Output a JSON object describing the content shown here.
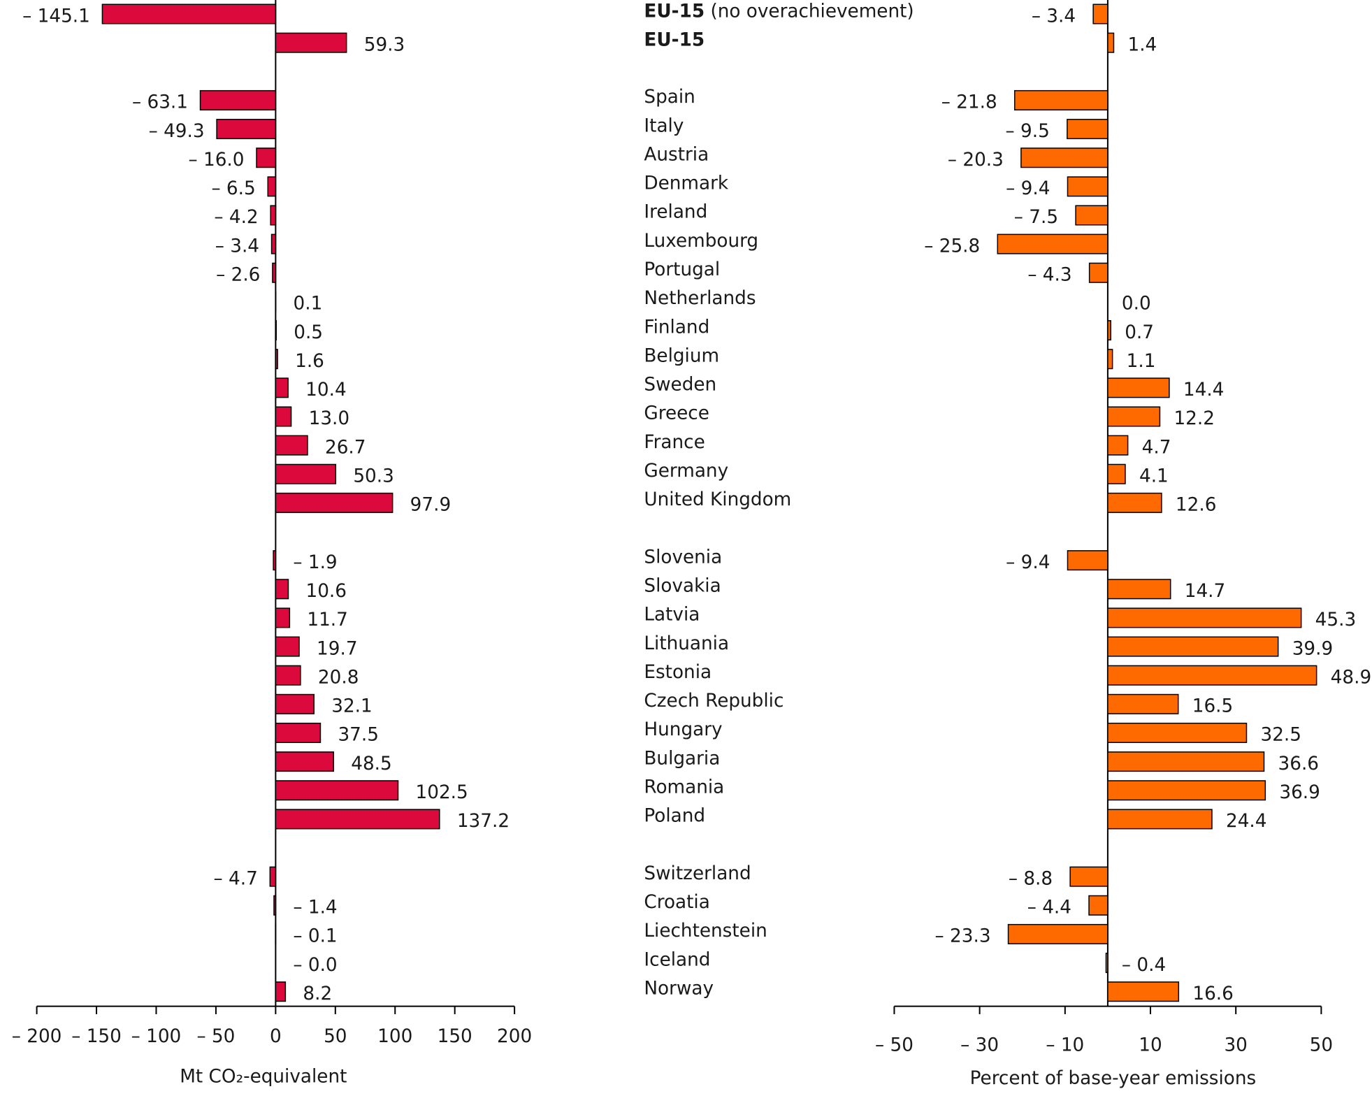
{
  "chart_data": [
    {
      "type": "hbar",
      "x_label": "Mt CO₂-equivalent",
      "color": "#dc0a3c",
      "xlim": [
        -200,
        200
      ],
      "xticks": [
        {
          "value": -200,
          "label": "– 200"
        },
        {
          "value": -150,
          "label": "– 150"
        },
        {
          "value": -100,
          "label": "– 100"
        },
        {
          "value": -50,
          "label": "– 50"
        },
        0,
        50,
        100,
        150,
        200
      ],
      "values": [
        -145.1,
        59.3,
        null,
        -63.1,
        -49.3,
        -16.0,
        -6.5,
        -4.2,
        -3.4,
        -2.6,
        0.1,
        0.5,
        1.6,
        10.4,
        13.0,
        26.7,
        50.3,
        97.9,
        null,
        -1.9,
        10.6,
        11.7,
        19.7,
        20.8,
        32.1,
        37.5,
        48.5,
        102.5,
        137.2,
        null,
        -4.7,
        -1.4,
        -0.1,
        -0.0,
        8.2
      ],
      "value_labels": [
        "– 145.1",
        "59.3",
        null,
        "– 63.1",
        "– 49.3",
        "– 16.0",
        "– 6.5",
        "– 4.2",
        "– 3.4",
        "– 2.6",
        "0.1",
        "0.5",
        "1.6",
        "10.4",
        "13.0",
        "26.7",
        "50.3",
        "97.9",
        null,
        "– 1.9",
        "10.6",
        "11.7",
        "19.7",
        "20.8",
        "32.1",
        "37.5",
        "48.5",
        "102.5",
        "137.2",
        null,
        "– 4.7",
        "– 1.4",
        "– 0.1",
        "– 0.0",
        "8.2"
      ]
    },
    {
      "type": "hbar",
      "x_label": "Percent of base-year emissions",
      "color": "#ff6a00",
      "xlim": [
        -50,
        50
      ],
      "xticks": [
        {
          "value": -50,
          "label": "– 50"
        },
        {
          "value": -30,
          "label": "– 30"
        },
        {
          "value": -10,
          "label": "– 10"
        },
        10,
        30,
        50
      ],
      "categories": [
        "EU-15 (no overachievement)",
        "EU-15",
        null,
        "Spain",
        "Italy",
        "Austria",
        "Denmark",
        "Ireland",
        "Luxembourg",
        "Portugal",
        "Netherlands",
        "Finland",
        "Belgium",
        "Sweden",
        "Greece",
        "France",
        "Germany",
        "United Kingdom",
        null,
        "Slovenia",
        "Slovakia",
        "Latvia",
        "Lithuania",
        "Estonia",
        "Czech Republic",
        "Hungary",
        "Bulgaria",
        "Romania",
        "Poland",
        null,
        "Switzerland",
        "Croatia",
        "Liechtenstein",
        "Iceland",
        "Norway"
      ],
      "highlight_rows": [
        0,
        1
      ],
      "values": [
        -3.4,
        1.4,
        null,
        -21.8,
        -9.5,
        -20.3,
        -9.4,
        -7.5,
        -25.8,
        -4.3,
        0.0,
        0.7,
        1.1,
        14.4,
        12.2,
        4.7,
        4.1,
        12.6,
        null,
        -9.4,
        14.7,
        45.3,
        39.9,
        48.9,
        16.5,
        32.5,
        36.6,
        36.9,
        24.4,
        null,
        -8.8,
        -4.4,
        -23.3,
        -0.4,
        16.6
      ],
      "value_labels": [
        "– 3.4",
        "1.4",
        null,
        "– 21.8",
        "– 9.5",
        "– 20.3",
        "– 9.4",
        "– 7.5",
        "– 25.8",
        "– 4.3",
        "0.0",
        "0.7",
        "1.1",
        "14.4",
        "12.2",
        "4.7",
        "4.1",
        "12.6",
        null,
        "– 9.4",
        "14.7",
        "45.3",
        "39.9",
        "48.9",
        "16.5",
        "32.5",
        "36.6",
        "36.9",
        "24.4",
        null,
        "– 8.8",
        "– 4.4",
        "– 23.3",
        "– 0.4",
        "16.6"
      ]
    }
  ]
}
